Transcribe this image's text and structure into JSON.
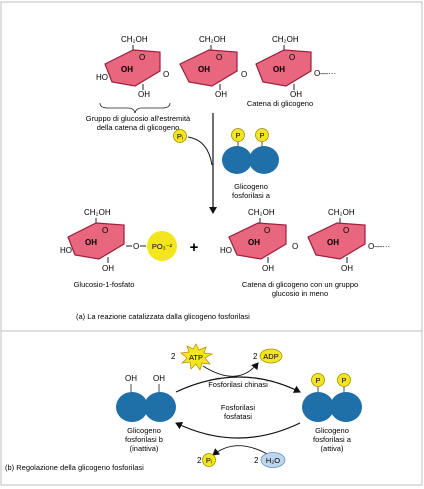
{
  "panel_a": {
    "chem": {
      "ch2oh": "CH₂OH",
      "oh": "OH",
      "ho": "HO",
      "o": "O",
      "dots": "O—···"
    },
    "label_glucose_end": [
      "Gruppo di glucosio all'estremità",
      "della catena di glicogeno"
    ],
    "label_chain": "Catena di glicogeno",
    "pi": "Pᵢ",
    "enzyme_p": "P",
    "enzyme_label": [
      "Glicogeno",
      "fosforilasi a"
    ],
    "po3": "PO₃⁻²",
    "plus": "+",
    "label_g1p": "Glucosio-1-fosfato",
    "label_chain_minus": [
      "Catena di glicogeno con un gruppo",
      "glucosio in meno"
    ],
    "caption": "(a)  La reazione catalizzata dalla glicogeno fosforilasi"
  },
  "panel_b": {
    "two": "2",
    "atp": "ATP",
    "adp": "ADP",
    "kinase": "Fosforilasi chinasi",
    "phosphatase": [
      "Fosforilasi",
      "fosfatasi"
    ],
    "oh": "OH",
    "p": "P",
    "left_label": [
      "Glicogeno",
      "fosforilasi b",
      "(inattiva)"
    ],
    "right_label": [
      "Glicogeno",
      "fosforilasi a",
      "(attiva)"
    ],
    "pi": "Pᵢ",
    "h2o": "H₂O",
    "caption": "(b)  Regolazione della glicogeno fosforilasi"
  },
  "colors": {
    "ring_fill": "#e8667e",
    "ring_stroke": "#9c1e3b",
    "enzyme": "#1f6fa8",
    "yellow": "#f3e61d",
    "water": "#bcd6ee",
    "frame": "#bfbfbf"
  }
}
